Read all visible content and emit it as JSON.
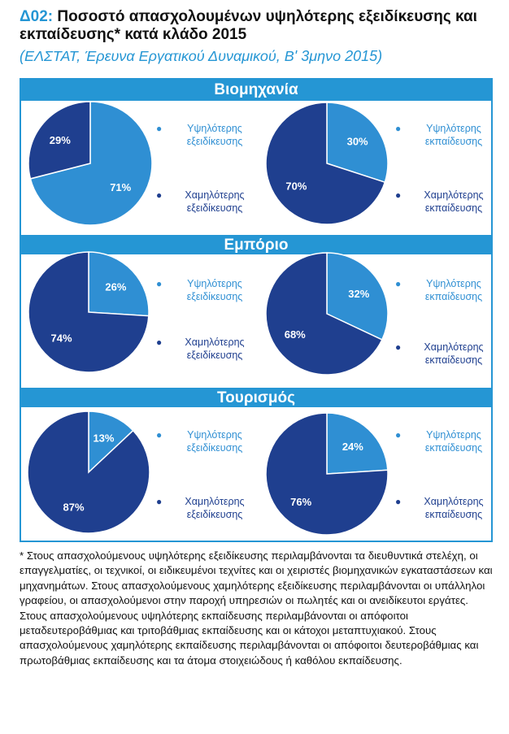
{
  "header": {
    "code": "Δ02:",
    "title": "Ποσοστό απασχολουμένων υψηλότερης εξειδίκευσης και εκπαίδευσης* κατά κλάδο 2015",
    "subtitle": "(ΕΛΣΤΑΤ, Έρευνα Εργατικού Δυναμικού, Β' 3μηνο 2015)"
  },
  "colors": {
    "accent": "#2596d4",
    "light": "#2f8fd3",
    "dark": "#1f3f8f"
  },
  "chart_data": [
    {
      "type": "pie",
      "panel": "Βιομηχανία",
      "slices": [
        {
          "label": "Υψηλότερης εξειδίκευσης",
          "value": 71,
          "text": "71%"
        },
        {
          "label": "Χαμηλότερης εξειδίκευσης",
          "value": 29,
          "text": "29%"
        }
      ]
    },
    {
      "type": "pie",
      "panel": "Βιομηχανία",
      "slices": [
        {
          "label": "Υψηλότερης εκπαίδευσης",
          "value": 30,
          "text": "30%"
        },
        {
          "label": "Χαμηλότερης εκπαίδευσης",
          "value": 70,
          "text": "70%"
        }
      ]
    },
    {
      "type": "pie",
      "panel": "Εμπόριο",
      "slices": [
        {
          "label": "Υψηλότερης εξειδίκευσης",
          "value": 26,
          "text": "26%"
        },
        {
          "label": "Χαμηλότερης εξειδίκευσης",
          "value": 74,
          "text": "74%"
        }
      ]
    },
    {
      "type": "pie",
      "panel": "Εμπόριο",
      "slices": [
        {
          "label": "Υψηλότερης εκπαίδευσης",
          "value": 32,
          "text": "32%"
        },
        {
          "label": "Χαμηλότερης εκπαίδευσης",
          "value": 68,
          "text": "68%"
        }
      ]
    },
    {
      "type": "pie",
      "panel": "Τουρισμός",
      "slices": [
        {
          "label": "Υψηλότερης εξειδίκευσης",
          "value": 13,
          "text": "13%"
        },
        {
          "label": "Χαμηλότερης εξειδίκευσης",
          "value": 87,
          "text": "87%"
        }
      ]
    },
    {
      "type": "pie",
      "panel": "Τουρισμός",
      "slices": [
        {
          "label": "Υψηλότερης εκπαίδευσης",
          "value": 24,
          "text": "24%"
        },
        {
          "label": "Χαμηλότερης εκπαίδευσης",
          "value": 76,
          "text": "76%"
        }
      ]
    }
  ],
  "panels": [
    {
      "title": "Βιομηχανία",
      "left_legend": {
        "high": "Υψηλότερης εξειδίκευσης",
        "low": "Χαμηλότερης εξειδίκευσης"
      },
      "right_legend": {
        "high": "Υψηλότερης εκπαίδευσης",
        "low": "Χαμηλότερης εκπαίδευσης"
      }
    },
    {
      "title": "Εμπόριο",
      "left_legend": {
        "high": "Υψηλότερης εξειδίκευσης",
        "low": "Χαμηλότερης εξειδίκευσης"
      },
      "right_legend": {
        "high": "Υψηλότερης εκπαίδευσης",
        "low": "Χαμηλότερης εκπαίδευσης"
      }
    },
    {
      "title": "Τουρισμός",
      "left_legend": {
        "high": "Υψηλότερης εξειδίκευσης",
        "low": "Χαμηλότερης εξειδίκευσης"
      },
      "right_legend": {
        "high": "Υψηλότερης εκπαίδευσης",
        "low": "Χαμηλότερης εκπαίδευσης"
      }
    }
  ],
  "footnote": "*  Στους απασχολούμενους υψηλότερης εξειδίκευσης περιλαμβάνονται τα διευθυντικά στελέχη, οι επαγγελματίες, οι τεχνικοί, οι ειδικευμένοι τεχνίτες και οι χειριστές βιομηχανικών εγκαταστάσεων και μηχανημάτων. Στους απασχολούμενους χαμηλότερης εξειδίκευσης περιλαμβάνονται οι υπάλληλοι γραφείου, οι απασχολούμενοι στην παροχή υπηρεσιών οι πωλητές και οι ανειδίκευτοι εργάτες. Στους απασχολούμενους υψηλότερης εκπαίδευσης περιλαμβάνονται οι απόφοιτοι μεταδευτεροβάθμιας και τριτοβάθμιας εκπαίδευσης και οι κάτοχοι μεταπτυχιακού. Στους απασχολούμενους χαμηλότερης εκπαίδευσης περιλαμβάνονται οι απόφοιτοι δευτεροβάθμιας και πρωτοβάθμιας εκπαίδευσης και τα άτομα στοιχειώδους ή καθόλου εκπαίδευσης."
}
